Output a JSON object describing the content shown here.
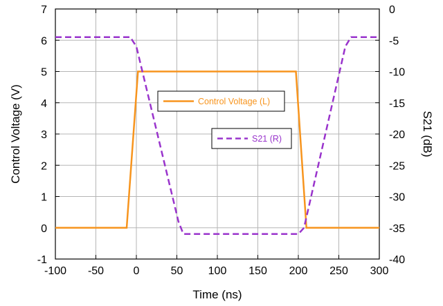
{
  "chart_data": {
    "type": "line",
    "xlabel": "Time (ns)",
    "ylabel_left": "Control Voltage (V)",
    "ylabel_right": "S21 (dB)",
    "xlim": [
      -100,
      300
    ],
    "ylim_left": [
      -1,
      7
    ],
    "ylim_right": [
      -40,
      0
    ],
    "grid": true,
    "x_ticks": [
      -100,
      -50,
      0,
      50,
      100,
      150,
      200,
      250,
      300
    ],
    "y_left_ticks": [
      -1,
      0,
      1,
      2,
      3,
      4,
      5,
      6,
      7
    ],
    "y_right_ticks": [
      -40,
      -35,
      -30,
      -25,
      -20,
      -15,
      -10,
      -5,
      0
    ],
    "series": [
      {
        "name": "Control Voltage (L)",
        "axis": "left",
        "color": "#F7941D",
        "style": "solid",
        "x": [
          -100,
          -12,
          2,
          197,
          210,
          300
        ],
        "y": [
          0,
          0,
          5,
          5,
          0,
          0
        ]
      },
      {
        "name": "S21 (R)",
        "axis": "right",
        "color": "#9933CC",
        "style": "dashed",
        "x": [
          -100,
          -7,
          -5,
          0,
          52,
          58,
          200,
          207,
          258,
          265,
          300
        ],
        "y": [
          -4.5,
          -4.5,
          -5,
          -6,
          -34,
          -36,
          -36,
          -35,
          -6,
          -4.5,
          -4.5
        ]
      }
    ]
  }
}
